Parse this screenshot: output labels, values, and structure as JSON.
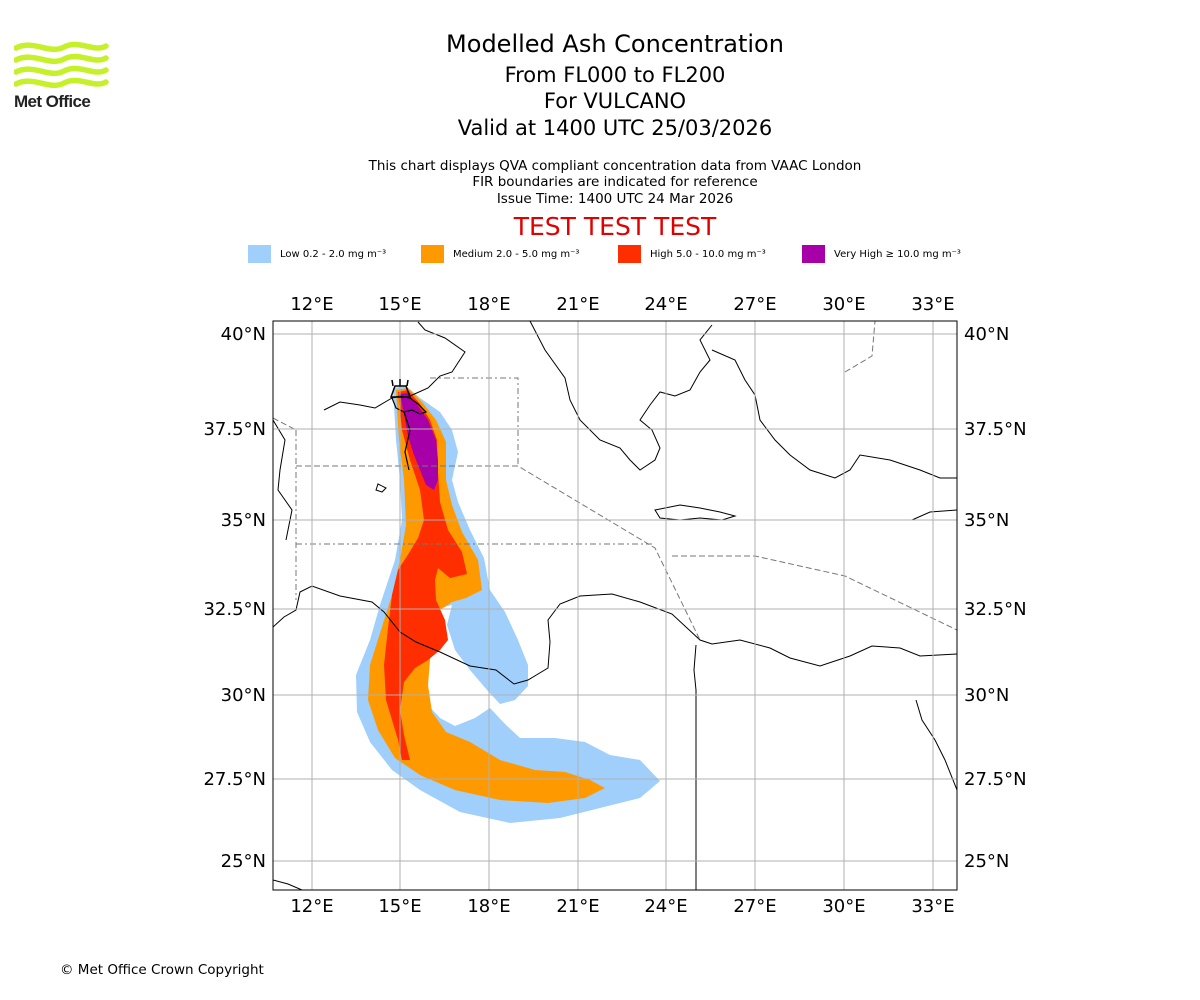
{
  "header": {
    "logo_text": "Met Office",
    "title": "Modelled Ash Concentration",
    "levels": "From FL000 to FL200",
    "volcano": "For VULCANO",
    "valid": "Valid at 1400 UTC 25/03/2026",
    "note_1": "This chart displays QVA compliant concentration data from VAAC London",
    "note_2": "FIR boundaries are indicated for reference",
    "issue_time": "Issue Time: 1400 UTC 24 Mar 2026",
    "test_banner": "TEST TEST TEST"
  },
  "legend": [
    {
      "label": "Low 0.2 - 2.0 mg m⁻³",
      "color": "#9fcffa"
    },
    {
      "label": "Medium 2.0 - 5.0 mg m⁻³",
      "color": "#ff9900"
    },
    {
      "label": "High 5.0 - 10.0 mg m⁻³",
      "color": "#ff2e00"
    },
    {
      "label": "Very High ≥ 10.0 mg m⁻³",
      "color": "#a800a8"
    }
  ],
  "map": {
    "lon_ticks": [
      "12°E",
      "15°E",
      "18°E",
      "21°E",
      "24°E",
      "27°E",
      "30°E",
      "33°E"
    ],
    "lat_ticks": [
      "40°N",
      "37.5°N",
      "35°N",
      "32.5°N",
      "30°N",
      "27.5°N",
      "25°N"
    ],
    "volcano_marker": "volcano-symbol"
  },
  "footer": {
    "copyright": "© Met Office Crown Copyright"
  }
}
